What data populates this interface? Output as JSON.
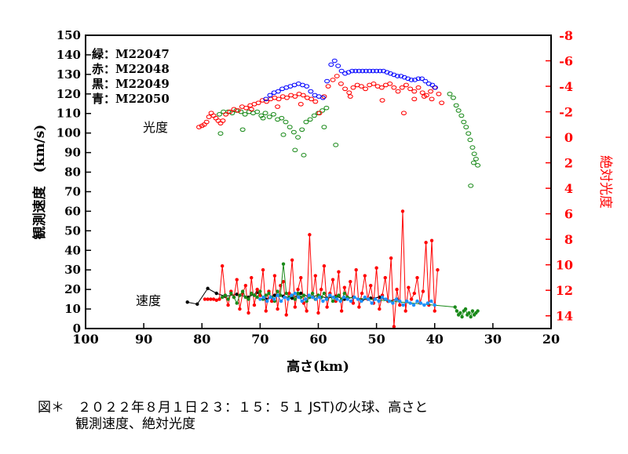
{
  "chart_data": {
    "type": "scatter",
    "xlabel": "高さ(km)",
    "ylabel_left": "観測速度　(km/s)",
    "ylabel_right": "絶対光度",
    "xlim": [
      100,
      20
    ],
    "ylim_left": [
      0,
      150
    ],
    "ylim_right": [
      15,
      -8
    ],
    "xticks": [
      100,
      90,
      80,
      70,
      60,
      50,
      40,
      30,
      20
    ],
    "yticks_left": [
      0,
      10,
      20,
      30,
      40,
      50,
      60,
      70,
      80,
      90,
      100,
      110,
      120,
      130,
      140,
      150
    ],
    "yticks_right": [
      14,
      12,
      10,
      8,
      6,
      4,
      2,
      0,
      -2,
      -4,
      -6,
      -8
    ],
    "legend": [
      "緑：M22047",
      "赤：M22048",
      "黒：M22049",
      "青：M22050"
    ],
    "annotations": {
      "brightness": "光度",
      "speed": "速度"
    },
    "colors": {
      "green": "#1a8a1a",
      "red": "#ff0000",
      "black": "#000000",
      "blue": "#0000ff",
      "blue_speed": "#1e90ff"
    },
    "series": [
      {
        "name": "緑：M22047",
        "kind": "brightness",
        "axis": "right",
        "x": [
          77,
          76.3,
          75.5,
          74.8,
          74.1,
          73.3,
          72.6,
          71.9,
          71.2,
          70.5,
          69.8,
          69.1,
          68.4,
          67.7,
          67,
          66.3,
          65.6,
          64.9,
          64.2,
          63.5,
          62.8,
          62.1,
          61.4,
          60.7,
          60,
          59.3,
          58.6,
          37.4,
          36.8,
          36.3,
          35.9,
          35.4,
          35,
          34.6,
          34.2,
          33.9,
          33.5,
          33.2,
          32.9,
          32.6,
          76.8,
          73,
          69.5,
          66,
          64,
          62.5,
          59,
          57,
          33.8,
          33.3
        ],
        "y": [
          -1.8,
          -2.0,
          -2.0,
          -1.9,
          -2.1,
          -2.0,
          -1.8,
          -2.0,
          -1.9,
          -2.0,
          -1.7,
          -1.9,
          -1.6,
          -1.8,
          -1.4,
          -1.5,
          -1.2,
          -0.8,
          -0.4,
          0.0,
          -0.6,
          -1.2,
          -1.4,
          -1.7,
          -1.9,
          -2.1,
          -2.3,
          -3.4,
          -3.1,
          -2.5,
          -2.1,
          -1.7,
          -1.2,
          -0.8,
          -0.3,
          0.2,
          0.8,
          1.3,
          1.7,
          2.2,
          -0.3,
          -0.6,
          -1.5,
          -0.2,
          1.0,
          1.4,
          -0.8,
          0.6,
          3.8,
          2.0
        ]
      },
      {
        "name": "赤：M22048",
        "kind": "brightness",
        "axis": "right",
        "x": [
          80.5,
          80,
          79.6,
          79.2,
          78.8,
          78.4,
          78,
          77.6,
          77.2,
          76.8,
          76.4,
          75.9,
          75.2,
          74.5,
          73.8,
          73.1,
          72.4,
          71.7,
          71,
          70.3,
          69.6,
          68.9,
          68.2,
          67.5,
          66.8,
          66.1,
          65.4,
          64.7,
          64,
          63.3,
          62.6,
          61.9,
          61.2,
          60.5,
          59.8,
          59,
          58.3,
          57.5,
          56.8,
          56.1,
          55.4,
          54.7,
          54,
          53.3,
          52.6,
          51.9,
          51.2,
          50.5,
          49.8,
          49.1,
          48.4,
          47.7,
          47,
          46.3,
          45.6,
          44.9,
          44.2,
          43.5,
          42.8,
          42.1,
          41.4,
          40.7,
          40,
          39.3,
          38.8,
          71.5,
          67,
          63,
          54.5,
          49,
          45.3,
          43.5,
          41.8,
          40.5
        ],
        "y": [
          -0.8,
          -0.9,
          -1.0,
          -1.2,
          -1.6,
          -1.9,
          -1.7,
          -1.5,
          -1.3,
          -1.1,
          -1.3,
          -1.8,
          -2.0,
          -2.2,
          -2.1,
          -2.4,
          -2.3,
          -2.5,
          -2.6,
          -2.7,
          -2.9,
          -2.8,
          -3.0,
          -3.1,
          -3.0,
          -3.2,
          -3.1,
          -3.3,
          -3.2,
          -3.4,
          -3.3,
          -3.1,
          -3.0,
          -2.8,
          -1.9,
          -3.2,
          -4.0,
          -4.5,
          -4.8,
          -4.2,
          -3.8,
          -3.5,
          -3.9,
          -4.1,
          -4.0,
          -3.8,
          -4.1,
          -4.2,
          -4.0,
          -3.9,
          -4.1,
          -4.2,
          -3.9,
          -3.6,
          -3.9,
          -4.1,
          -3.8,
          -3.6,
          -3.9,
          -3.5,
          -3.3,
          -3.6,
          -3.9,
          -3.4,
          -2.7,
          -2.2,
          -2.4,
          -2.6,
          -3.2,
          -2.9,
          -1.9,
          -3.0,
          -3.2,
          -3.0
        ]
      },
      {
        "name": "青：M22050",
        "kind": "brightness",
        "axis": "right",
        "x": [
          69,
          68.3,
          67.6,
          66.9,
          66.2,
          65.5,
          64.8,
          64.1,
          63.4,
          62.7,
          62,
          61.3,
          60.6,
          59.9,
          59.2,
          58.5,
          57.8,
          57.2,
          56.6,
          56,
          55.4,
          54.8,
          54.2,
          53.6,
          53,
          52.4,
          51.8,
          51.2,
          50.6,
          50,
          49.4,
          48.8,
          48.2,
          47.6,
          47,
          46.4,
          45.8,
          45.2,
          44.6,
          44,
          43.4,
          42.8,
          42.2,
          41.6,
          41,
          40.4,
          39.9
        ],
        "y": [
          -3.0,
          -3.3,
          -3.5,
          -3.6,
          -3.8,
          -3.9,
          -4.0,
          -4.1,
          -4.2,
          -4.1,
          -4.0,
          -3.6,
          -3.3,
          -3.2,
          -3.1,
          -4.4,
          -5.7,
          -6.0,
          -5.6,
          -5.2,
          -5.0,
          -5.1,
          -5.2,
          -5.2,
          -5.2,
          -5.2,
          -5.2,
          -5.2,
          -5.2,
          -5.2,
          -5.2,
          -5.2,
          -5.1,
          -5.0,
          -4.9,
          -4.8,
          -4.8,
          -4.7,
          -4.6,
          -4.5,
          -4.5,
          -4.6,
          -4.6,
          -4.4,
          -4.2,
          -4.1,
          -3.9
        ]
      },
      {
        "name": "黒：M22049",
        "kind": "speed",
        "axis": "left",
        "x": [
          82.5,
          80.8,
          79,
          77.5,
          76,
          74,
          72,
          70.5,
          69,
          67.5,
          66,
          64.5,
          63,
          61.5,
          60,
          58.5,
          57,
          55.5,
          54,
          52.5,
          51,
          49.5,
          48,
          46.5
        ],
        "y": [
          13.5,
          12.5,
          20.5,
          18,
          16.5,
          17.5,
          16,
          18.5,
          15,
          17,
          16.5,
          15.5,
          18,
          16,
          17,
          15.5,
          16.5,
          15,
          16,
          14.5,
          15.5,
          16,
          14,
          15
        ]
      },
      {
        "name": "赤：M22048",
        "kind": "speed",
        "axis": "left",
        "x": [
          79.5,
          79,
          78.5,
          78,
          77.5,
          77,
          76.5,
          76,
          75.5,
          75,
          74.5,
          74,
          73.5,
          73,
          72.5,
          72,
          71.5,
          71,
          70.5,
          70,
          69.5,
          69,
          68.5,
          68,
          67.5,
          67,
          66.5,
          66,
          65.5,
          65,
          64.5,
          64,
          63.5,
          63,
          62.5,
          62,
          61.5,
          61,
          60.5,
          60,
          59.5,
          59,
          58.5,
          58,
          57.5,
          57,
          56.5,
          56,
          55.5,
          55,
          54.5,
          54,
          53.5,
          53,
          52.5,
          52,
          51.5,
          51,
          50.5,
          50,
          49.5,
          49,
          48.5,
          48,
          47.5,
          47,
          46.5,
          46,
          45.5,
          45,
          44.5,
          44,
          43.5,
          43,
          42.5,
          42,
          41.5,
          41,
          40.5,
          40,
          39.5
        ],
        "y": [
          15,
          15,
          15,
          15,
          14.5,
          15,
          32,
          17,
          12,
          19,
          16,
          25,
          10,
          18,
          22,
          8,
          26,
          12,
          20,
          17,
          30,
          9,
          19,
          14,
          27,
          10,
          22,
          24,
          7,
          18,
          35,
          11,
          20,
          26,
          13,
          9,
          48,
          16,
          27,
          8,
          20,
          32,
          11,
          18,
          25,
          14,
          29,
          9,
          21,
          16,
          24,
          13,
          30,
          11,
          18,
          27,
          15,
          22,
          13,
          31,
          10,
          17,
          26,
          14,
          36,
          1,
          20,
          12,
          60,
          9,
          21,
          15,
          18,
          26,
          13,
          19,
          44,
          12,
          45,
          9,
          30
        ]
      },
      {
        "name": "緑：M22047",
        "kind": "speed",
        "axis": "left",
        "x": [
          76.5,
          76,
          75.5,
          75,
          74.5,
          74,
          73.5,
          73,
          72.5,
          72,
          71.5,
          71,
          70.5,
          70,
          69.5,
          69,
          68.5,
          68,
          67.5,
          67,
          66.5,
          66,
          65.5,
          65,
          64.5,
          64,
          63.5,
          63,
          62.5,
          62,
          61.5,
          61,
          60.5,
          60,
          59.5,
          59,
          58.5,
          58,
          57.5,
          57,
          56.5,
          56,
          55.5,
          55,
          36.5,
          36.2,
          35.9,
          35.6,
          35.3,
          35,
          34.7,
          34.4,
          34.1,
          33.8,
          33.5,
          33.2,
          32.9,
          32.6
        ],
        "y": [
          16,
          17,
          15,
          18,
          16,
          13,
          17,
          19,
          16,
          15,
          18,
          17,
          16,
          19,
          15,
          17,
          18,
          16,
          14,
          19,
          17,
          33,
          18,
          16,
          17,
          15,
          18,
          16,
          17,
          14,
          16,
          18,
          15,
          17,
          16,
          18,
          15,
          17,
          14,
          16,
          17,
          15,
          18,
          16,
          11,
          9,
          7,
          8,
          6,
          9,
          10,
          7,
          8,
          6,
          9,
          7,
          8,
          9
        ]
      },
      {
        "name": "青：M22050",
        "kind": "speed",
        "axis": "left",
        "x": [
          70,
          69.4,
          68.8,
          68.2,
          67.6,
          67,
          66.4,
          65.8,
          65.2,
          64.6,
          64,
          63.4,
          62.8,
          62.2,
          61.6,
          61,
          60.4,
          59.8,
          59.2,
          58.6,
          58,
          57.4,
          56.8,
          56.2,
          55.6,
          55,
          54.4,
          53.8,
          53.2,
          52.6,
          52,
          51.4,
          50.8,
          50.2,
          49.6,
          49,
          48.4,
          47.8,
          47.2,
          46.6,
          46,
          45.4,
          44.8,
          44.2,
          43.6,
          43,
          42.4,
          41.8,
          41.2,
          40.6,
          40
        ],
        "y": [
          15,
          16,
          14,
          16,
          15,
          17,
          14,
          16,
          15,
          17,
          18,
          16,
          14,
          15,
          17,
          16,
          15,
          16,
          14,
          15,
          17,
          16,
          15,
          14,
          16,
          15,
          14,
          16,
          15,
          14,
          16,
          15,
          13,
          15,
          14,
          16,
          15,
          14,
          13,
          15,
          14,
          12,
          14,
          13,
          12,
          14,
          13,
          12,
          13,
          14,
          12
        ]
      }
    ]
  },
  "caption": {
    "line1": "図＊　２０２２年８月１日２３：１５：５１ JST)の火球、高さと",
    "line2": "観測速度、絶対光度"
  }
}
